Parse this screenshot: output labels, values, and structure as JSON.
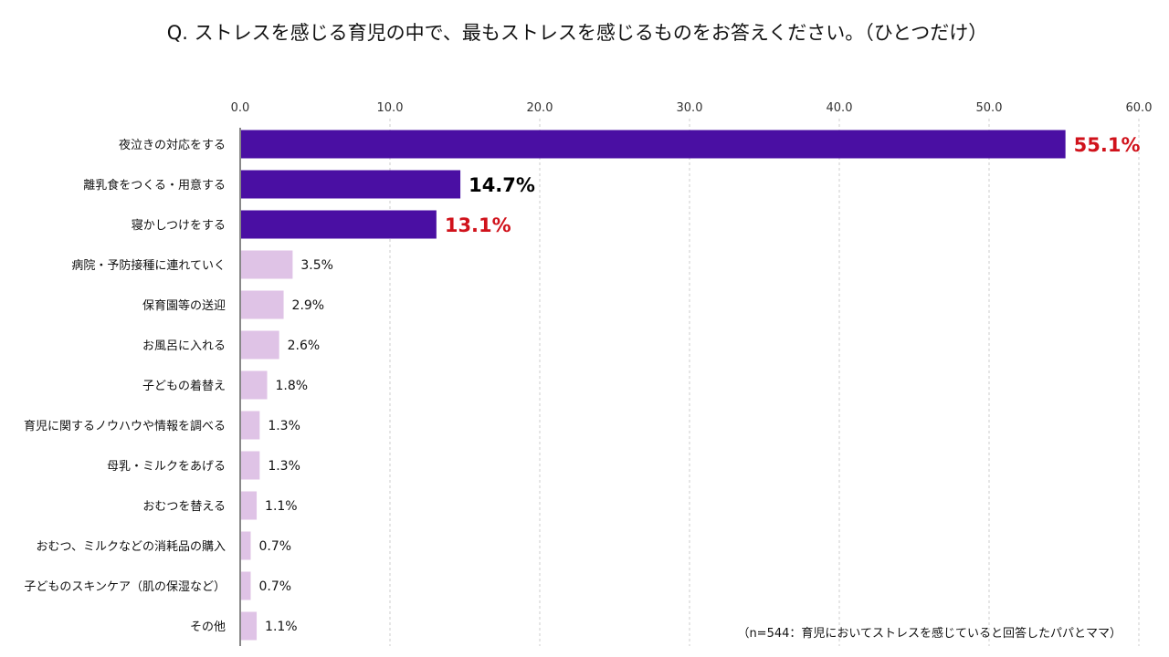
{
  "colors": {
    "highlight_bar": "#4a0fa3",
    "normal_bar": "#dfc3e6",
    "highlight_label_red": "#d0121b",
    "highlight_label_black": "#000000",
    "normal_label": "#111111",
    "grid": "#cccccc",
    "axis": "#888888"
  },
  "chart_data": {
    "type": "bar",
    "orientation": "horizontal",
    "title": "Q. ストレスを感じる育児の中で、最もストレスを感じるものをお答えください。（ひとつだけ）",
    "xlim": [
      0,
      60
    ],
    "ticks": [
      0,
      10,
      20,
      30,
      40,
      50,
      60
    ],
    "tick_labels": [
      "0.0",
      "10.0",
      "20.0",
      "30.0",
      "40.0",
      "50.0",
      "60.0"
    ],
    "grid": true,
    "grid_style": "dashed-vertical",
    "tick_position": "top",
    "categories": [
      "夜泣きの対応をする",
      "離乳食をつくる・用意する",
      "寝かしつけをする",
      "病院・予防接種に連れていく",
      "保育園等の送迎",
      "お風呂に入れる",
      "子どもの着替え",
      "育児に関するノウハウや情報を調べる",
      "母乳・ミルクをあげる",
      "おむつを替える",
      "おむつ、ミルクなどの消耗品の購入",
      "子どものスキンケア（肌の保湿など）",
      "その他"
    ],
    "values": [
      55.1,
      14.7,
      13.1,
      3.5,
      2.9,
      2.6,
      1.8,
      1.3,
      1.3,
      1.1,
      0.7,
      0.7,
      1.1
    ],
    "value_labels": [
      "55.1%",
      "14.7%",
      "13.1%",
      "3.5%",
      "2.9%",
      "2.6%",
      "1.8%",
      "1.3%",
      "1.3%",
      "1.1%",
      "0.7%",
      "0.7%",
      "1.1%"
    ],
    "highlighted": [
      true,
      true,
      true,
      false,
      false,
      false,
      false,
      false,
      false,
      false,
      false,
      false,
      false
    ],
    "label_colors": [
      "red",
      "black",
      "red",
      "normal",
      "normal",
      "normal",
      "normal",
      "normal",
      "normal",
      "normal",
      "normal",
      "normal",
      "normal"
    ],
    "note": "（n=544：育児においてストレスを感じていると回答したパパとママ）"
  }
}
